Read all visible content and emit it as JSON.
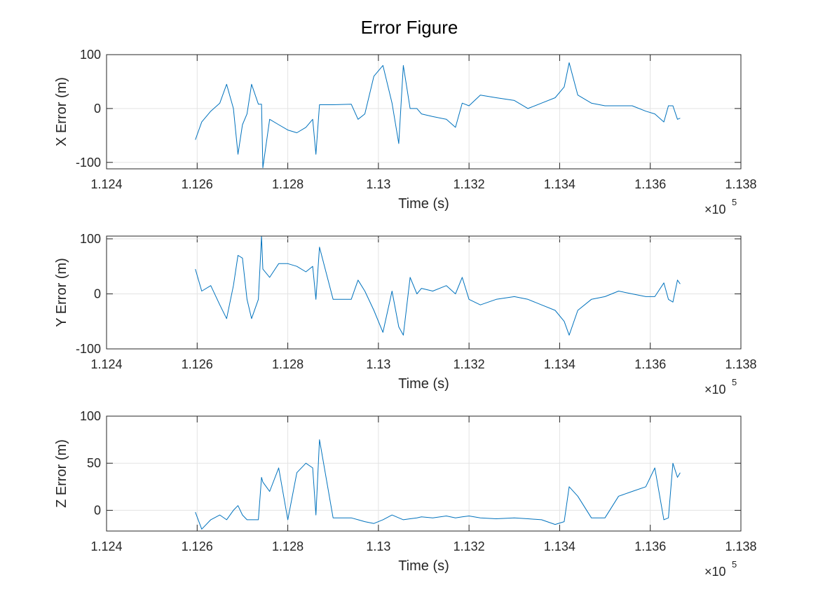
{
  "figure_title": "Error Figure",
  "chart_data": [
    {
      "type": "line",
      "xlabel": "Time (s)",
      "ylabel": "X Error (m)",
      "x_multiplier": "×10",
      "x_multiplier_power": "5",
      "xlim": [
        112400,
        113800
      ],
      "ylim": [
        -112,
        100
      ],
      "yticks": [
        -100,
        0,
        100
      ],
      "grid": true,
      "xticks": [
        {
          "value": 112400,
          "label": "1.124"
        },
        {
          "value": 112600,
          "label": "1.126"
        },
        {
          "value": 112800,
          "label": "1.128"
        },
        {
          "value": 113000,
          "label": "1.13"
        },
        {
          "value": 113200,
          "label": "1.132"
        },
        {
          "value": 113400,
          "label": "1.134"
        },
        {
          "value": 113600,
          "label": "1.136"
        },
        {
          "value": 113800,
          "label": "1.138"
        }
      ],
      "x": [
        112596,
        112610,
        112630,
        112650,
        112665,
        112680,
        112690,
        112700,
        112710,
        112720,
        112735,
        112742,
        112745,
        112760,
        112780,
        112800,
        112820,
        112840,
        112855,
        112862,
        112870,
        112900,
        112940,
        112955,
        112970,
        112990,
        113010,
        113030,
        113045,
        113055,
        113070,
        113085,
        113095,
        113120,
        113150,
        113170,
        113185,
        113200,
        113225,
        113260,
        113300,
        113330,
        113360,
        113390,
        113410,
        113421,
        113440,
        113470,
        113500,
        113530,
        113560,
        113590,
        113610,
        113630,
        113640,
        113650,
        113660,
        113666
      ],
      "series": [
        {
          "color": "#0072bd",
          "values": [
            -58,
            -25,
            -5,
            10,
            45,
            0,
            -85,
            -30,
            -10,
            45,
            8,
            8,
            -110,
            -20,
            -30,
            -40,
            -45,
            -35,
            -20,
            -85,
            7,
            7,
            8,
            -20,
            -10,
            60,
            80,
            10,
            -65,
            80,
            0,
            0,
            -10,
            -15,
            -20,
            -35,
            10,
            5,
            25,
            20,
            15,
            0,
            10,
            20,
            40,
            85,
            25,
            10,
            5,
            5,
            5,
            -5,
            -10,
            -25,
            5,
            5,
            -20,
            -18
          ]
        }
      ]
    },
    {
      "type": "line",
      "xlabel": "Time (s)",
      "ylabel": "Y Error (m)",
      "x_multiplier": "×10",
      "x_multiplier_power": "5",
      "xlim": [
        112400,
        113800
      ],
      "ylim": [
        -100,
        105
      ],
      "yticks": [
        -100,
        0,
        100
      ],
      "grid": true,
      "xticks": [
        {
          "value": 112400,
          "label": "1.124"
        },
        {
          "value": 112600,
          "label": "1.126"
        },
        {
          "value": 112800,
          "label": "1.128"
        },
        {
          "value": 113000,
          "label": "1.13"
        },
        {
          "value": 113200,
          "label": "1.132"
        },
        {
          "value": 113400,
          "label": "1.134"
        },
        {
          "value": 113600,
          "label": "1.136"
        },
        {
          "value": 113800,
          "label": "1.138"
        }
      ],
      "x": [
        112596,
        112610,
        112630,
        112650,
        112665,
        112680,
        112690,
        112700,
        112710,
        112720,
        112735,
        112742,
        112745,
        112760,
        112780,
        112800,
        112820,
        112840,
        112855,
        112862,
        112870,
        112900,
        112940,
        112955,
        112970,
        112990,
        113010,
        113030,
        113045,
        113055,
        113070,
        113085,
        113095,
        113120,
        113150,
        113170,
        113185,
        113200,
        113225,
        113260,
        113300,
        113330,
        113360,
        113390,
        113410,
        113421,
        113440,
        113470,
        113500,
        113530,
        113560,
        113590,
        113610,
        113630,
        113640,
        113650,
        113660,
        113666
      ],
      "series": [
        {
          "color": "#0072bd",
          "values": [
            45,
            5,
            15,
            -20,
            -45,
            15,
            70,
            65,
            -10,
            -45,
            -10,
            105,
            45,
            30,
            55,
            55,
            50,
            40,
            50,
            -10,
            85,
            -10,
            -10,
            25,
            5,
            -30,
            -70,
            5,
            -60,
            -75,
            30,
            0,
            10,
            5,
            15,
            0,
            30,
            -10,
            -20,
            -10,
            -5,
            -10,
            -20,
            -30,
            -50,
            -75,
            -30,
            -10,
            -5,
            5,
            0,
            -5,
            -5,
            20,
            -10,
            -15,
            25,
            18
          ]
        }
      ]
    },
    {
      "type": "line",
      "xlabel": "Time (s)",
      "ylabel": "Z Error (m)",
      "x_multiplier": "×10",
      "x_multiplier_power": "5",
      "xlim": [
        112400,
        113800
      ],
      "ylim": [
        -22,
        100
      ],
      "yticks": [
        0,
        50,
        100
      ],
      "grid": true,
      "xticks": [
        {
          "value": 112400,
          "label": "1.124"
        },
        {
          "value": 112600,
          "label": "1.126"
        },
        {
          "value": 112800,
          "label": "1.128"
        },
        {
          "value": 113000,
          "label": "1.13"
        },
        {
          "value": 113200,
          "label": "1.132"
        },
        {
          "value": 113400,
          "label": "1.134"
        },
        {
          "value": 113600,
          "label": "1.136"
        },
        {
          "value": 113800,
          "label": "1.138"
        }
      ],
      "x": [
        112596,
        112610,
        112630,
        112650,
        112665,
        112680,
        112690,
        112700,
        112710,
        112720,
        112735,
        112742,
        112745,
        112760,
        112780,
        112800,
        112820,
        112840,
        112855,
        112862,
        112870,
        112900,
        112940,
        112955,
        112970,
        112990,
        113010,
        113030,
        113045,
        113055,
        113070,
        113085,
        113095,
        113120,
        113150,
        113170,
        113185,
        113200,
        113225,
        113260,
        113300,
        113330,
        113360,
        113390,
        113410,
        113421,
        113440,
        113470,
        113500,
        113530,
        113560,
        113590,
        113610,
        113630,
        113640,
        113650,
        113660,
        113666
      ],
      "series": [
        {
          "color": "#0072bd",
          "values": [
            -2,
            -20,
            -10,
            -5,
            -10,
            0,
            5,
            -5,
            -10,
            -10,
            -10,
            35,
            30,
            20,
            45,
            -10,
            40,
            50,
            45,
            -5,
            75,
            -8,
            -8,
            -10,
            -12,
            -14,
            -10,
            -5,
            -8,
            -10,
            -9,
            -8,
            -7,
            -8,
            -6,
            -8,
            -7,
            -6,
            -8,
            -9,
            -8,
            -9,
            -10,
            -15,
            -12,
            25,
            15,
            -8,
            -8,
            15,
            20,
            25,
            45,
            -10,
            -8,
            50,
            35,
            40
          ]
        }
      ]
    }
  ]
}
